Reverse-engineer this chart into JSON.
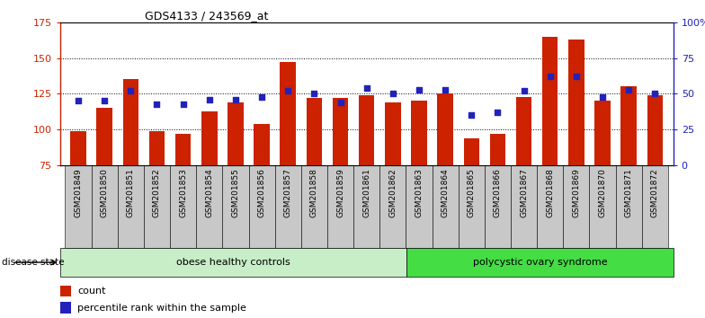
{
  "title": "GDS4133 / 243569_at",
  "samples": [
    "GSM201849",
    "GSM201850",
    "GSM201851",
    "GSM201852",
    "GSM201853",
    "GSM201854",
    "GSM201855",
    "GSM201856",
    "GSM201857",
    "GSM201858",
    "GSM201859",
    "GSM201861",
    "GSM201862",
    "GSM201863",
    "GSM201864",
    "GSM201865",
    "GSM201866",
    "GSM201867",
    "GSM201868",
    "GSM201869",
    "GSM201870",
    "GSM201871",
    "GSM201872"
  ],
  "counts": [
    99,
    115,
    135,
    99,
    97,
    113,
    119,
    104,
    147,
    122,
    122,
    124,
    119,
    120,
    125,
    94,
    97,
    123,
    165,
    163,
    120,
    130,
    124
  ],
  "percentiles": [
    45,
    45,
    52,
    43,
    43,
    46,
    46,
    48,
    52,
    50,
    44,
    54,
    50,
    53,
    53,
    35,
    37,
    52,
    62,
    62,
    48,
    53,
    50
  ],
  "group1_label": "obese healthy controls",
  "group2_label": "polycystic ovary syndrome",
  "group1_count": 13,
  "bar_color": "#CC2200",
  "dot_color": "#2222BB",
  "ylim_left": [
    75,
    175
  ],
  "ylim_right": [
    0,
    100
  ],
  "yticks_left": [
    75,
    100,
    125,
    150,
    175
  ],
  "yticks_right": [
    0,
    25,
    50,
    75,
    100
  ],
  "ytick_labels_right": [
    "0",
    "25",
    "50",
    "75",
    "100%"
  ],
  "grid_lines": [
    100,
    125,
    150
  ],
  "group1_color": "#C8EEC8",
  "group2_color": "#44DD44",
  "legend_count_label": "count",
  "legend_pct_label": "percentile rank within the sample",
  "sample_bg_color": "#C8C8C8",
  "plot_bg_color": "white"
}
